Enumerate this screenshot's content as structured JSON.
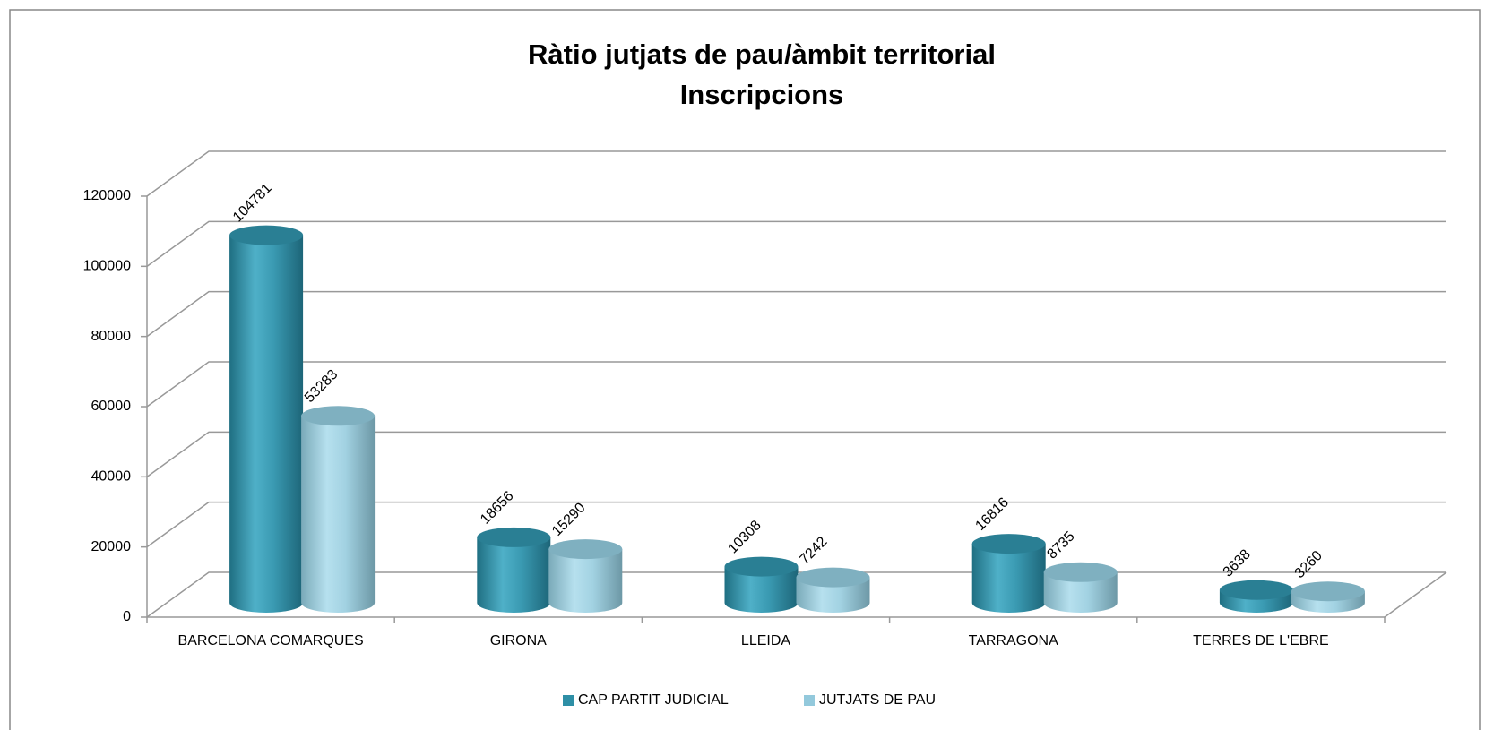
{
  "chart_data": {
    "type": "bar3d",
    "title": "Ràtio jutjats de pau/àmbit territorial",
    "subtitle": "Inscripcions",
    "categories": [
      "BARCELONA COMARQUES",
      "GIRONA",
      "LLEIDA",
      "TARRAGONA",
      "TERRES DE L'EBRE"
    ],
    "series": [
      {
        "name": "CAP PARTIT JUDICIAL",
        "color": "#2e8fa6",
        "values": [
          104781,
          18656,
          10308,
          16816,
          3638
        ]
      },
      {
        "name": "JUTJATS DE PAU",
        "color": "#93c9dc",
        "values": [
          53283,
          15290,
          7242,
          8735,
          3260
        ]
      }
    ],
    "ylim": [
      0,
      120000
    ],
    "yticks": [
      0,
      20000,
      40000,
      60000,
      80000,
      100000,
      120000
    ],
    "grid": true,
    "legend": "bottom"
  }
}
